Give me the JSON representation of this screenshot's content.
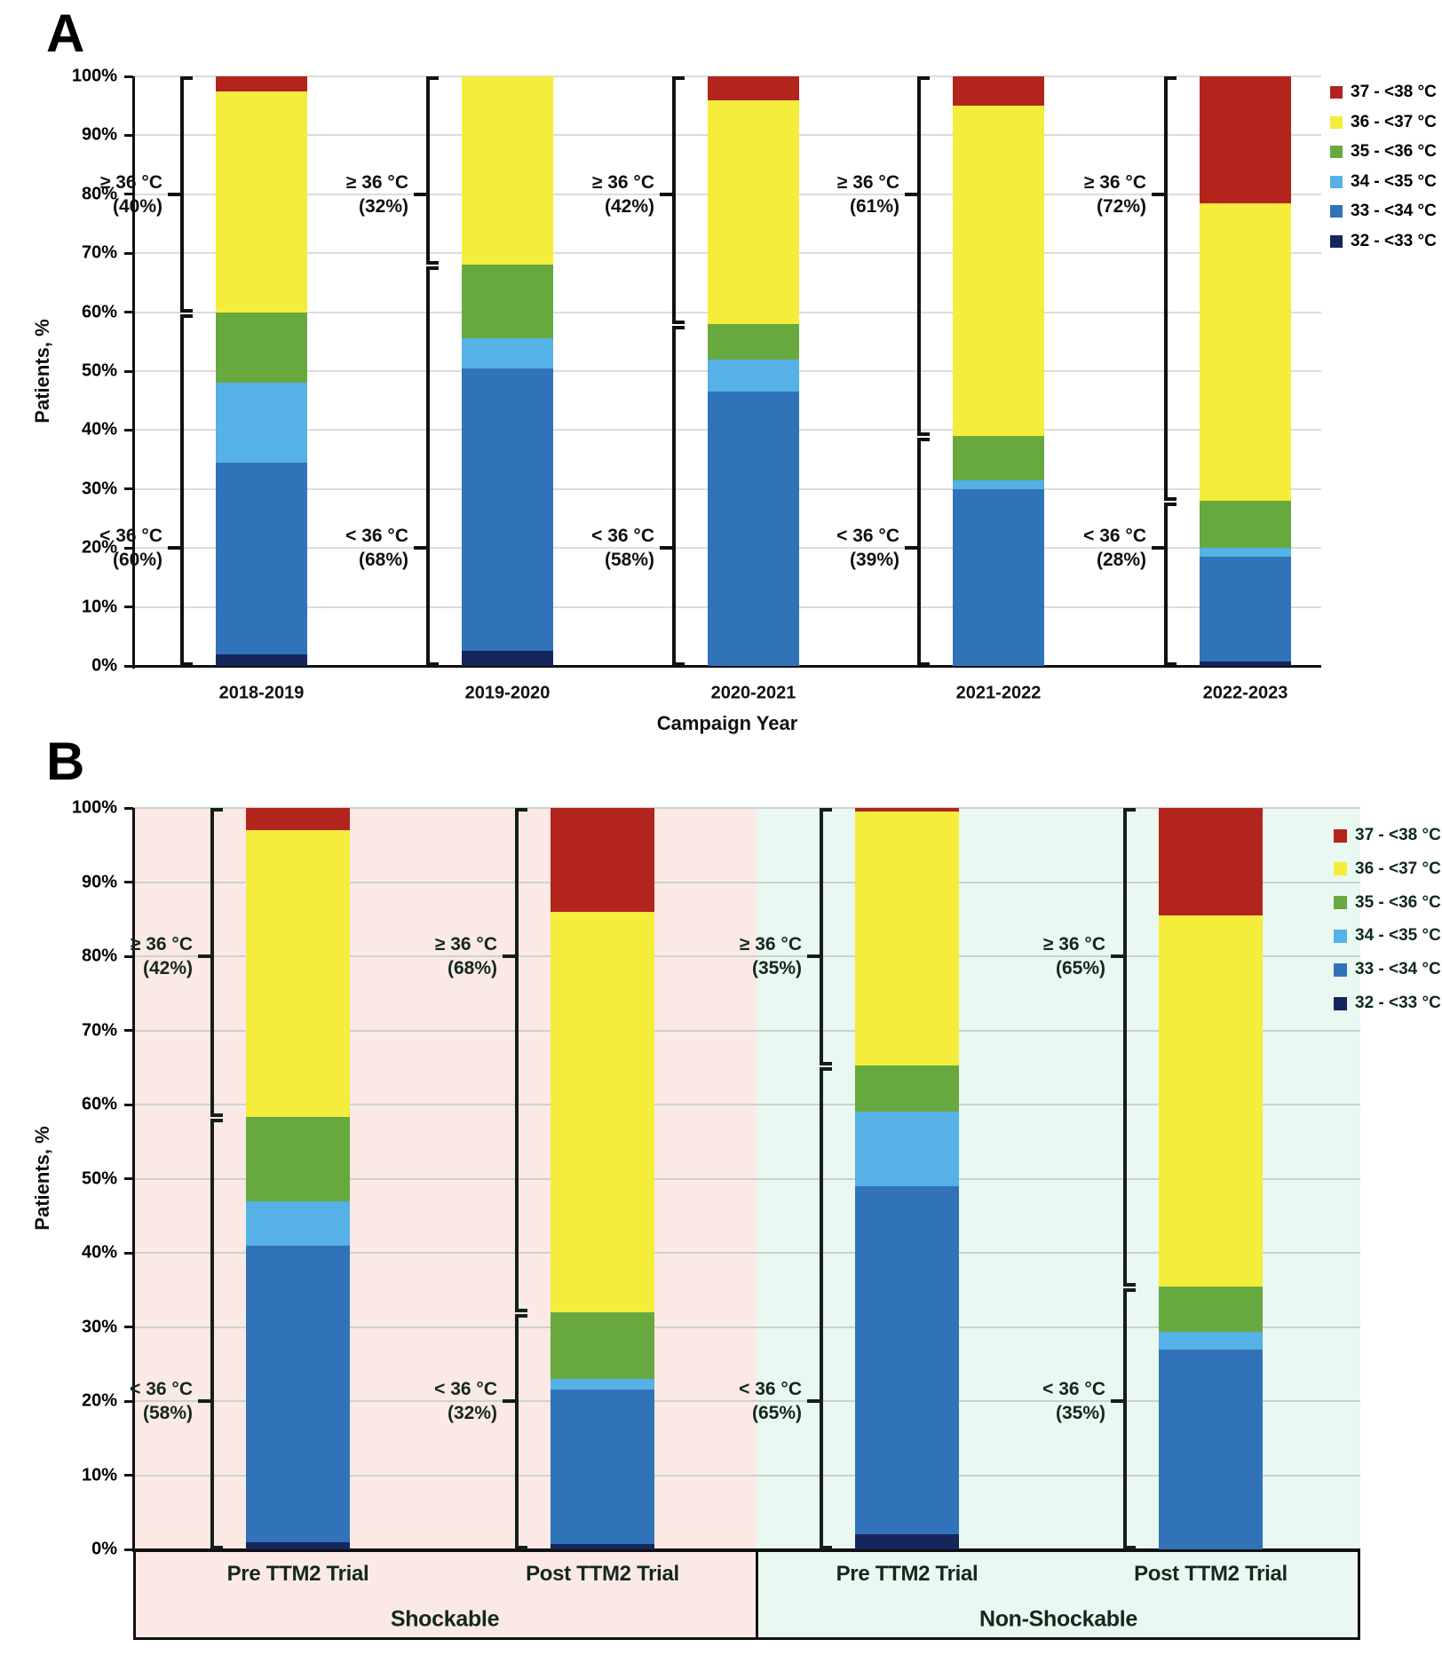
{
  "chart_data": [
    {
      "type": "bar",
      "stacked": true,
      "panel_label": "A",
      "xlabel": "Campaign Year",
      "ylabel": "Patients, %",
      "ylim": [
        0,
        100
      ],
      "grid": true,
      "legend_position": "top-right",
      "y_tick_labels": [
        "0%",
        "10%",
        "20%",
        "30%",
        "40%",
        "50%",
        "60%",
        "70%",
        "80%",
        "90%",
        "100%"
      ],
      "categories": [
        "2018-2019",
        "2019-2020",
        "2020-2021",
        "2021-2022",
        "2022-2023"
      ],
      "series": [
        {
          "name": "32 - <33 °C",
          "color": "#15265c",
          "band": "<36",
          "values": [
            2,
            2.5,
            0,
            0,
            0.7
          ]
        },
        {
          "name": "33 - <34 °C",
          "color": "#3173b9",
          "band": "<36",
          "values": [
            32.5,
            48,
            46.5,
            30,
            17.8
          ]
        },
        {
          "name": "34 - <35 °C",
          "color": "#55b1e6",
          "band": "<36",
          "values": [
            13.5,
            5,
            5.5,
            1.5,
            1.5
          ]
        },
        {
          "name": "35 - <36 °C",
          "color": "#68a93f",
          "band": "<36",
          "values": [
            12,
            12.5,
            6,
            7.5,
            8
          ]
        },
        {
          "name": "36 - <37 °C",
          "color": "#f5ed3b",
          "band": ">=36",
          "values": [
            37.5,
            32,
            38,
            56,
            50.5
          ]
        },
        {
          "name": "37 - <38 °C",
          "color": "#b3241d",
          "band": ">=36",
          "values": [
            2.5,
            0,
            4,
            5,
            21.5
          ]
        }
      ],
      "annotations": [
        {
          "upper": [
            "≥ 36 °C",
            "(40%)"
          ],
          "lower": [
            "< 36 °C",
            "(60%)"
          ]
        },
        {
          "upper": [
            "≥ 36 °C",
            "(32%)"
          ],
          "lower": [
            "< 36 °C",
            "(68%)"
          ]
        },
        {
          "upper": [
            "≥ 36 °C",
            "(42%)"
          ],
          "lower": [
            "< 36 °C",
            "(58%)"
          ]
        },
        {
          "upper": [
            "≥ 36 °C",
            "(61%)"
          ],
          "lower": [
            "< 36 °C",
            "(39%)"
          ]
        },
        {
          "upper": [
            "≥ 36 °C",
            "(72%)"
          ],
          "lower": [
            "< 36 °C",
            "(28%)"
          ]
        }
      ]
    },
    {
      "type": "bar",
      "stacked": true,
      "panel_label": "B",
      "xlabel": "",
      "ylabel": "Patients, %",
      "ylim": [
        0,
        100
      ],
      "grid": true,
      "legend_position": "top-right",
      "y_tick_labels": [
        "0%",
        "10%",
        "20%",
        "30%",
        "40%",
        "50%",
        "60%",
        "70%",
        "80%",
        "90%",
        "100%"
      ],
      "categories": [
        "Pre TTM2 Trial",
        "Post TTM2 Trial",
        "Pre TTM2 Trial",
        "Post TTM2 Trial"
      ],
      "groups": [
        {
          "label": "Shockable",
          "background": "#fbe9e5"
        },
        {
          "label": "Non-Shockable",
          "background": "#e9f8f1"
        }
      ],
      "series": [
        {
          "name": "32 - <33 °C",
          "color": "#15265c",
          "band": "<36",
          "values": [
            1,
            0.7,
            2,
            0
          ]
        },
        {
          "name": "33 - <34 °C",
          "color": "#3173b9",
          "band": "<36",
          "values": [
            40,
            20.8,
            47,
            27
          ]
        },
        {
          "name": "34 - <35 °C",
          "color": "#55b1e6",
          "band": "<36",
          "values": [
            6,
            1.5,
            10,
            2.3
          ]
        },
        {
          "name": "35 - <36 °C",
          "color": "#68a93f",
          "band": "<36",
          "values": [
            11.3,
            9,
            6.3,
            6.2
          ]
        },
        {
          "name": "36 - <37 °C",
          "color": "#f5ed3b",
          "band": ">=36",
          "values": [
            38.7,
            54,
            34.2,
            50
          ]
        },
        {
          "name": "37 - <38 °C",
          "color": "#b3241d",
          "band": ">=36",
          "values": [
            3,
            14,
            0.5,
            14.5
          ]
        }
      ],
      "annotations": [
        {
          "upper": [
            "≥ 36 °C",
            "(42%)"
          ],
          "lower": [
            "< 36 °C",
            "(58%)"
          ]
        },
        {
          "upper": [
            "≥ 36 °C",
            "(68%)"
          ],
          "lower": [
            "< 36 °C",
            "(32%)"
          ]
        },
        {
          "upper": [
            "≥ 36 °C",
            "(35%)"
          ],
          "lower": [
            "< 36 °C",
            "(65%)"
          ]
        },
        {
          "upper": [
            "≥ 36 °C",
            "(65%)"
          ],
          "lower": [
            "< 36 °C",
            "(35%)"
          ]
        }
      ]
    }
  ]
}
